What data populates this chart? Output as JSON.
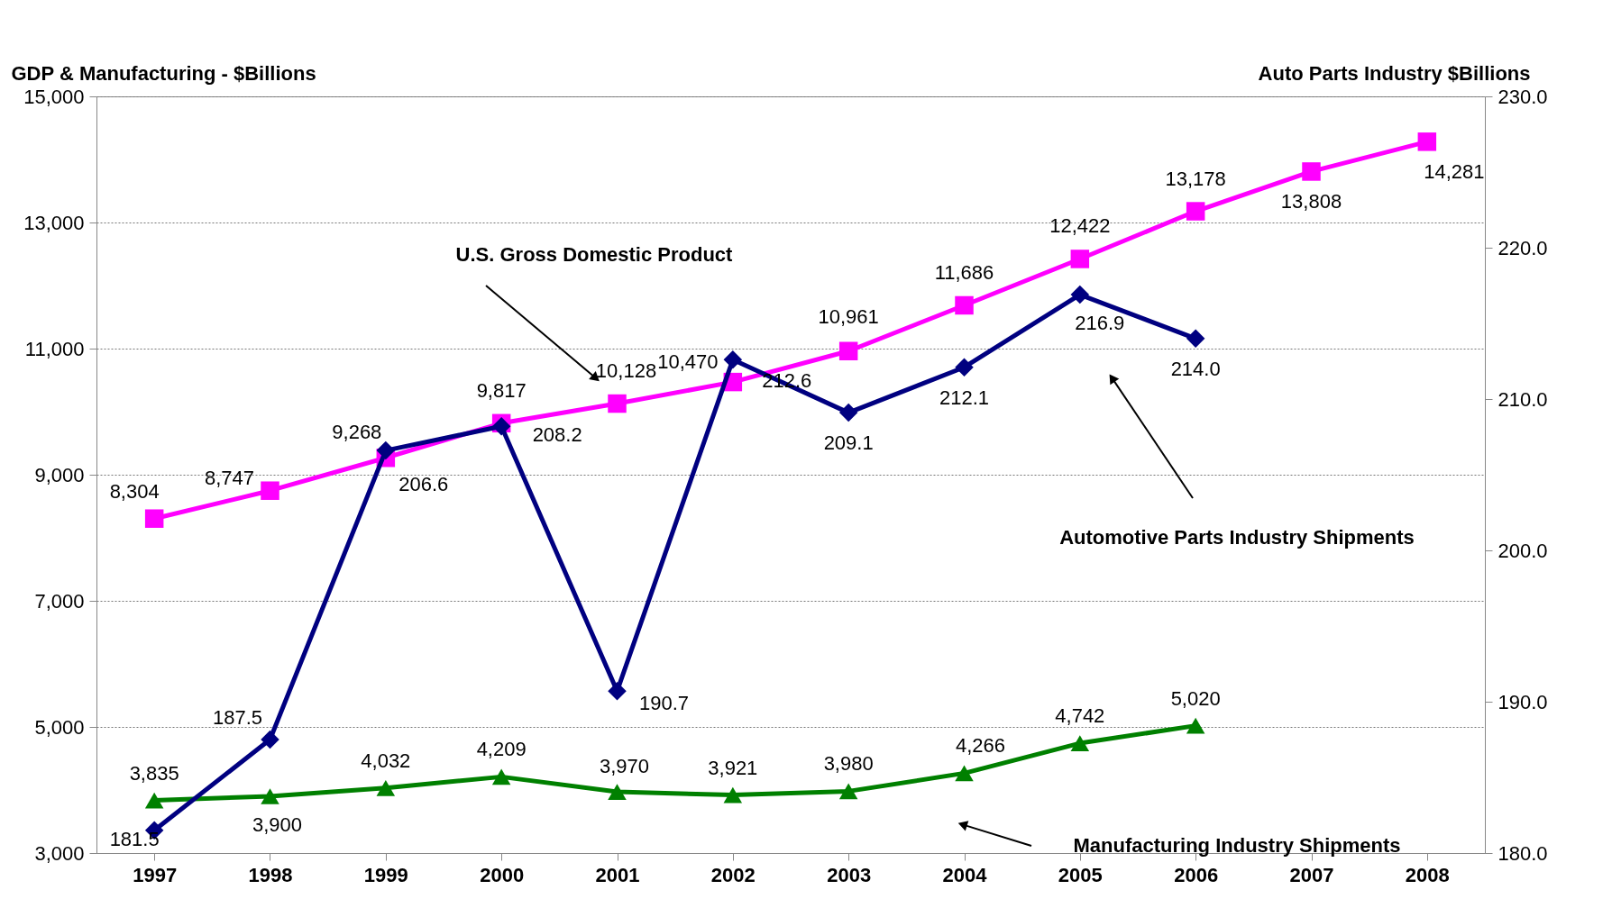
{
  "chart_data": {
    "type": "line",
    "ylabel": "GDP & Manufacturing - $Billions",
    "y2label": "Auto Parts Industry $Billions",
    "categories": [
      "1997",
      "1998",
      "1999",
      "2000",
      "2001",
      "2002",
      "2003",
      "2004",
      "2005",
      "2006",
      "2007",
      "2008"
    ],
    "series": [
      {
        "color": "#ff00ff",
        "marker": "square",
        "values": [
          8304,
          8747,
          9268,
          9817,
          10128,
          10470,
          10961,
          11686,
          12422,
          13178,
          13808,
          14281
        ],
        "value_labels": [
          "8,304",
          "8,747",
          "9,268",
          "9,817",
          "10,128",
          "10,470",
          "10,961",
          "11,686",
          "12,422",
          "13,178",
          "13,808",
          "14,281"
        ]
      },
      {
        "color": "#008000",
        "marker": "triangle",
        "values": [
          3835,
          3900,
          4032,
          4209,
          3970,
          3921,
          3980,
          4266,
          4742,
          5020,
          null,
          null
        ],
        "value_labels": [
          "3,835",
          "3,900",
          "4,032",
          "4,209",
          "3,970",
          "3,921",
          "3,980",
          "4,266",
          "4,742",
          "5,020",
          null,
          null
        ]
      },
      {
        "color": "#000080",
        "marker": "diamond",
        "axis": "y2",
        "values": [
          181.5,
          187.5,
          206.6,
          208.2,
          190.7,
          212.6,
          209.1,
          212.1,
          216.9,
          214.0,
          null,
          null
        ],
        "value_labels": [
          "181.5",
          "187.5",
          "206.6",
          "208.2",
          "190.7",
          "212.6",
          "209.1",
          "212.1",
          "216.9",
          "214.0",
          null,
          null
        ]
      }
    ],
    "ylim": [
      3000,
      15000
    ],
    "yticks": [
      {
        "value": 3000,
        "label": "3,000"
      },
      {
        "value": 5000,
        "label": "5,000"
      },
      {
        "value": 7000,
        "label": "7,000"
      },
      {
        "value": 9000,
        "label": "9,000"
      },
      {
        "value": 11000,
        "label": "11,000"
      },
      {
        "value": 13000,
        "label": "13,000"
      },
      {
        "value": 15000,
        "label": "15,000"
      }
    ],
    "y2lim": [
      180,
      230
    ],
    "y2ticks": [
      {
        "value": 180,
        "label": "180.0"
      },
      {
        "value": 190,
        "label": "190.0"
      },
      {
        "value": 200,
        "label": "200.0"
      },
      {
        "value": 210,
        "label": "210.0"
      },
      {
        "value": 220,
        "label": "220.0"
      },
      {
        "value": 230,
        "label": "230.0"
      }
    ],
    "grid": "y",
    "annotations": [
      "U.S. Gross Domestic Product",
      "Automotive Parts Industry Shipments",
      "Manufacturing Industry Shipments"
    ]
  }
}
